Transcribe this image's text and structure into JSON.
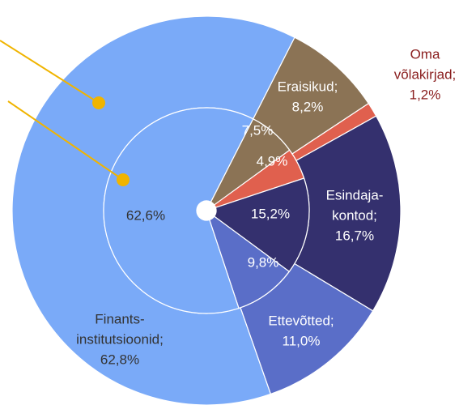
{
  "chart_data": {
    "type": "pie",
    "categories": [
      [
        "Eraisikud;"
      ],
      [
        "Oma",
        "võlakirjad;"
      ],
      [
        "Esindaja-",
        "kontod;"
      ],
      [
        "Ettevõtted;"
      ],
      [
        "Finants-",
        "institutsioonid;"
      ]
    ],
    "colors": [
      "#8b7355",
      "#e0604e",
      "#34306e",
      "#5a6ec8",
      "#7aaaf8"
    ],
    "series": [
      {
        "values": [
          8.2,
          1.2,
          16.7,
          11.0,
          62.8
        ],
        "value_labels": [
          "8,2%",
          "1,2%",
          "16,7%",
          "11,0%",
          "62,8%"
        ]
      },
      {
        "values": [
          7.5,
          4.9,
          15.2,
          9.8,
          62.6
        ],
        "value_labels": [
          "7,5%",
          "4,9%",
          "15,2%",
          "9,8%",
          "62,6%"
        ]
      }
    ]
  }
}
